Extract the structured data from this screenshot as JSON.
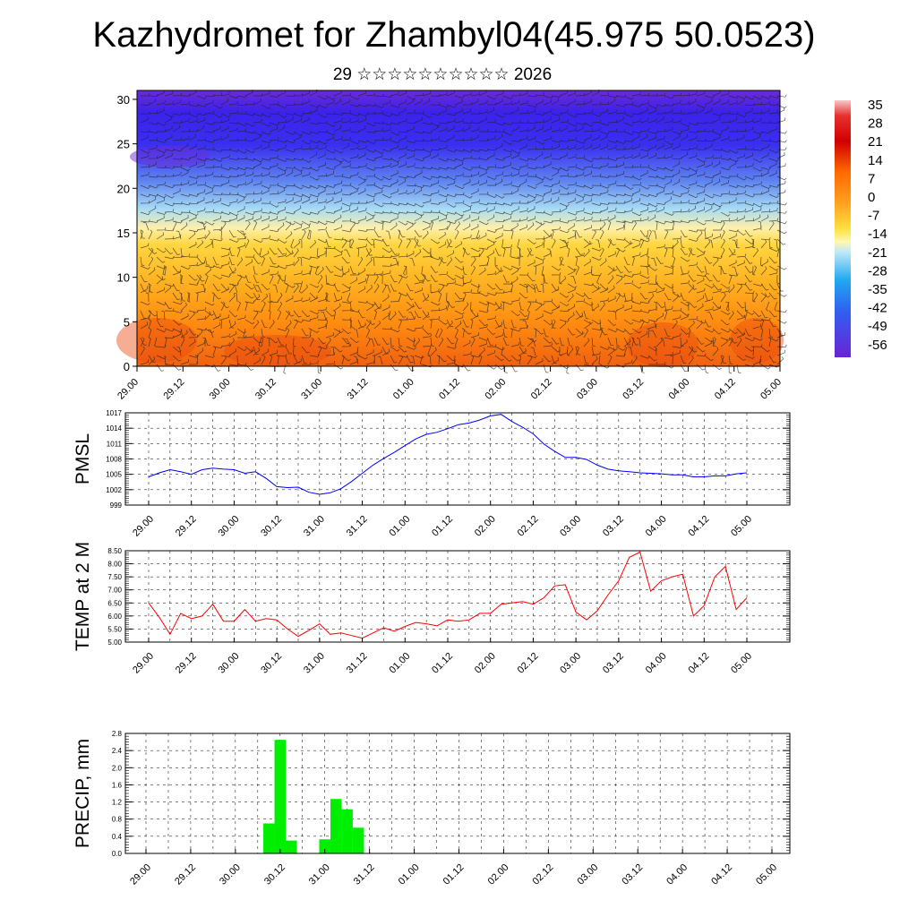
{
  "title": "Kazhydromet for Zhambyl04(45.975 50.0523)",
  "subtitle": "29 ☆☆☆☆☆☆☆☆☆☆ 2026",
  "time_ticks": [
    "29.00",
    "29.12",
    "30.00",
    "30.12",
    "31.00",
    "31.12",
    "01.00",
    "01.12",
    "02.00",
    "02.12",
    "03.00",
    "03.12",
    "04.00",
    "04.12",
    "05.00"
  ],
  "colorbar_labels": [
    "35",
    "28",
    "21",
    "14",
    "7",
    "0",
    "-7",
    "-14",
    "-21",
    "-28",
    "-35",
    "-42",
    "-49",
    "-56"
  ],
  "colors": {
    "pmsl_line": "#0000ff",
    "temp_line": "#ff0000",
    "precip_bar": "#00ee00"
  },
  "chart_data": [
    {
      "type": "heatmap",
      "name": "cross-section",
      "y_ticks": [
        "0",
        "5",
        "10",
        "15",
        "20",
        "25",
        "30"
      ],
      "ylim": [
        0,
        31
      ],
      "x_categories": [
        "29.00",
        "29.12",
        "30.00",
        "30.12",
        "31.00",
        "31.12",
        "01.00",
        "01.12",
        "02.00",
        "02.12",
        "03.00",
        "03.12",
        "04.00",
        "04.12",
        "05.00"
      ],
      "color_range": [
        -56,
        35
      ],
      "overlay": "wind barbs",
      "grid": false
    },
    {
      "type": "line",
      "ylabel": "PMSL",
      "y_ticks": [
        "999",
        "1002",
        "1005",
        "1008",
        "1011",
        "1014",
        "1017"
      ],
      "ylim": [
        999,
        1017
      ],
      "x_ticks": [
        "29.00",
        "29.12",
        "30.00",
        "30.12",
        "31.00",
        "31.12",
        "01.00",
        "01.12",
        "02.00",
        "02.12",
        "03.00",
        "03.12",
        "04.00",
        "04.12",
        "05.00"
      ],
      "x_step_hours": 3,
      "series": [
        {
          "values": [
            1004.5,
            1005.3,
            1005.9,
            1005.5,
            1005.0,
            1005.9,
            1006.2,
            1006.0,
            1005.9,
            1005.2,
            1005.5,
            1004.2,
            1002.6,
            1002.4,
            1002.5,
            1001.5,
            1001.1,
            1001.4,
            1002.2,
            1003.6,
            1005.2,
            1006.8,
            1008.1,
            1009.3,
            1010.6,
            1011.9,
            1012.8,
            1013.2,
            1013.9,
            1014.7,
            1015.0,
            1015.6,
            1016.4,
            1016.7,
            1015.3,
            1014.2,
            1012.9,
            1010.9,
            1009.5,
            1008.3,
            1008.3,
            1007.9,
            1006.8,
            1006.0,
            1005.7,
            1005.5,
            1005.3,
            1005.2,
            1005.1,
            1004.9,
            1004.9,
            1004.5,
            1004.5,
            1004.7,
            1004.7,
            1005.1,
            1005.3
          ]
        }
      ]
    },
    {
      "type": "line",
      "ylabel": "TEMP at 2 M",
      "y_ticks": [
        "5.00",
        "5.50",
        "6.00",
        "6.50",
        "7.00",
        "7.50",
        "8.00",
        "8.50"
      ],
      "ylim": [
        5.0,
        8.5
      ],
      "x_ticks": [
        "29.00",
        "29.12",
        "30.00",
        "30.12",
        "31.00",
        "31.12",
        "01.00",
        "01.12",
        "02.00",
        "02.12",
        "03.00",
        "03.12",
        "04.00",
        "04.12",
        "05.00"
      ],
      "x_step_hours": 3,
      "series": [
        {
          "values": [
            6.5,
            5.95,
            5.3,
            6.1,
            5.9,
            6.0,
            6.45,
            5.8,
            5.8,
            6.25,
            5.8,
            5.9,
            5.85,
            5.5,
            5.22,
            5.45,
            5.7,
            5.3,
            5.35,
            5.25,
            5.15,
            5.35,
            5.55,
            5.42,
            5.6,
            5.75,
            5.7,
            5.62,
            5.85,
            5.8,
            5.85,
            6.1,
            6.1,
            6.45,
            6.5,
            6.55,
            6.45,
            6.7,
            7.15,
            7.2,
            6.15,
            5.85,
            6.2,
            6.8,
            7.35,
            8.25,
            8.45,
            6.95,
            7.35,
            7.5,
            7.6,
            6.0,
            6.4,
            7.5,
            7.9,
            6.25,
            6.7
          ]
        }
      ]
    },
    {
      "type": "bar",
      "ylabel": "PRECIP, mm",
      "y_ticks": [
        "0.0",
        "0.4",
        "0.8",
        "1.2",
        "1.6",
        "2.0",
        "2.4",
        "2.8"
      ],
      "ylim": [
        0,
        2.8
      ],
      "x_ticks": [
        "29.00",
        "29.12",
        "30.00",
        "30.12",
        "31.00",
        "31.12",
        "01.00",
        "01.12",
        "02.00",
        "02.12",
        "03.00",
        "03.12",
        "04.00",
        "04.12",
        "05.00"
      ],
      "x_step_hours": 3,
      "bars": [
        {
          "t": 11,
          "value": 0.7
        },
        {
          "t": 12,
          "value": 2.65
        },
        {
          "t": 13,
          "value": 0.3
        },
        {
          "t": 16,
          "value": 0.33
        },
        {
          "t": 17,
          "value": 1.27
        },
        {
          "t": 18,
          "value": 1.03
        },
        {
          "t": 19,
          "value": 0.6
        }
      ]
    }
  ]
}
